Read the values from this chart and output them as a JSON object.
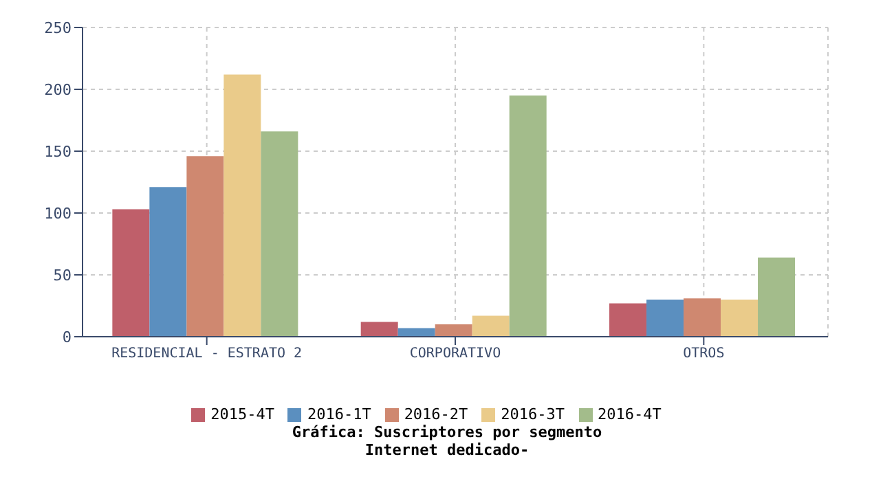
{
  "chart_data": {
    "type": "bar",
    "title": "Gráfica: Suscriptores por segmento",
    "subtitle": "Internet dedicado-",
    "categories": [
      "RESIDENCIAL - ESTRATO 2",
      "CORPORATIVO",
      "OTROS"
    ],
    "series": [
      {
        "name": "2015-4T",
        "color": "#bf5f6a",
        "values": [
          103,
          12,
          27
        ]
      },
      {
        "name": "2016-1T",
        "color": "#5b8fbf",
        "values": [
          121,
          7,
          30
        ]
      },
      {
        "name": "2016-2T",
        "color": "#cf8870",
        "values": [
          146,
          10,
          31
        ]
      },
      {
        "name": "2016-3T",
        "color": "#eacb8a",
        "values": [
          212,
          17,
          30
        ]
      },
      {
        "name": "2016-4T",
        "color": "#a3bc8b",
        "values": [
          166,
          195,
          64
        ]
      }
    ],
    "ylim": [
      0,
      250
    ],
    "yticks": [
      0,
      50,
      100,
      150,
      200,
      250
    ],
    "grid": true,
    "legend": "bottom"
  }
}
